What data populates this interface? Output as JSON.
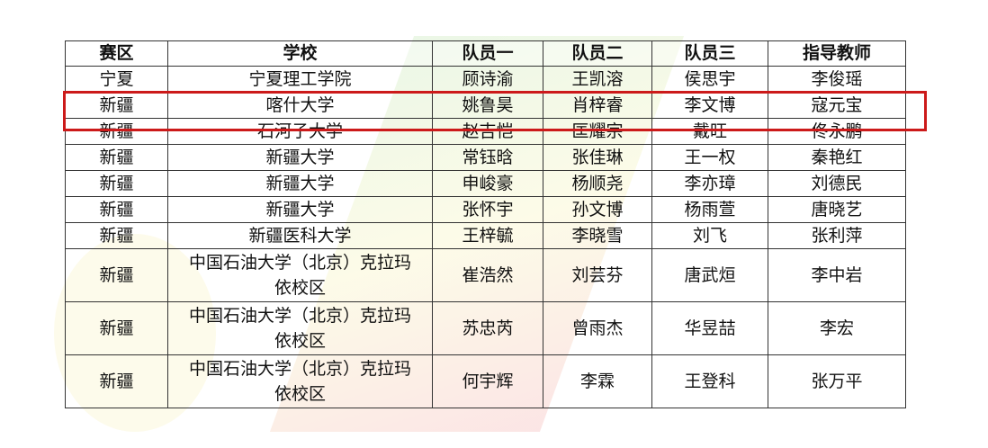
{
  "headers": [
    "赛区",
    "学校",
    "队员一",
    "队员二",
    "队员三",
    "指导教师"
  ],
  "rows": [
    [
      "宁夏",
      "宁夏理工学院",
      "顾诗渝",
      "王凯溶",
      "侯思宇",
      "李俊瑶"
    ],
    [
      "新疆",
      "喀什大学",
      "姚鲁昊",
      "肖梓睿",
      "李文博",
      "寇元宝"
    ],
    [
      "新疆",
      "石河子大学",
      "赵吉恺",
      "匡耀宗",
      "戴旺",
      "佟永鹏"
    ],
    [
      "新疆",
      "新疆大学",
      "常钰晗",
      "张佳琳",
      "王一权",
      "秦艳红"
    ],
    [
      "新疆",
      "新疆大学",
      "申峻豪",
      "杨顺尧",
      "李亦璋",
      "刘德民"
    ],
    [
      "新疆",
      "新疆大学",
      "张怀宇",
      "孙文博",
      "杨雨萱",
      "唐晓艺"
    ],
    [
      "新疆",
      "新疆医科大学",
      "王梓毓",
      "李晓雪",
      "刘飞",
      "张利萍"
    ],
    [
      "新疆",
      "中国石油大学（北京）克拉玛依校区",
      "崔浩然",
      "刘芸芬",
      "唐武烜",
      "李中岩"
    ],
    [
      "新疆",
      "中国石油大学（北京）克拉玛依校区",
      "苏忠芮",
      "曾雨杰",
      "华昱喆",
      "李宏"
    ],
    [
      "新疆",
      "中国石油大学（北京）克拉玛依校区",
      "何宇辉",
      "李霖",
      "王登科",
      "张万平"
    ]
  ],
  "highlight_color": "#cc1a1a"
}
